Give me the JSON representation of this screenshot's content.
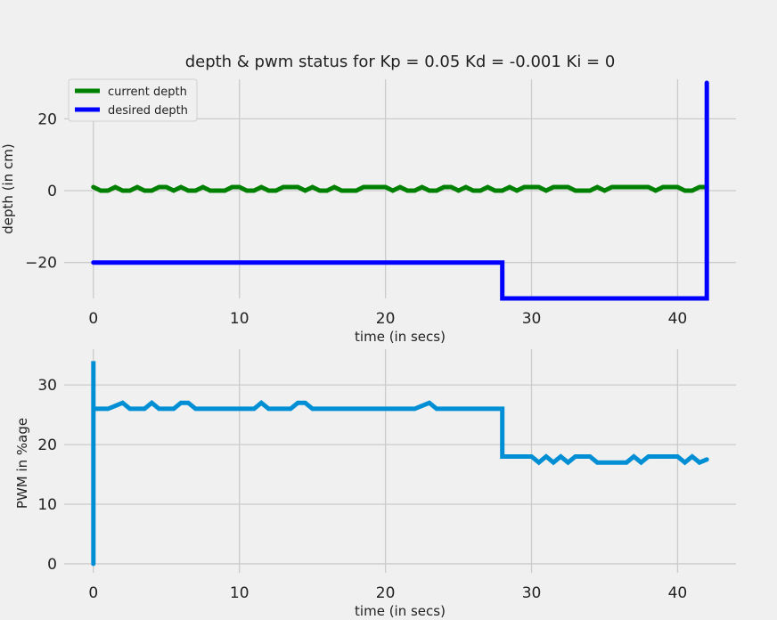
{
  "chart_data": [
    {
      "type": "line",
      "title": "depth & pwm status for Kp = 0.05 Kd = -0.001 Ki = 0",
      "xlabel": "time (in secs)",
      "ylabel": "depth (in cm)",
      "xlim": [
        -2,
        44
      ],
      "ylim": [
        -30,
        31
      ],
      "xticks": [
        0,
        10,
        20,
        30,
        40
      ],
      "yticks": [
        -20,
        0,
        20
      ],
      "ytick_labels": [
        "−20",
        "0",
        "20"
      ],
      "grid": true,
      "legend": "top-left",
      "series": [
        {
          "name": "current depth",
          "color": "#008000",
          "x": [
            0,
            0.5,
            1,
            1.5,
            2,
            2.5,
            3,
            3.5,
            4,
            4.5,
            5,
            5.5,
            6,
            6.5,
            7,
            7.5,
            8,
            8.5,
            9,
            9.5,
            10,
            10.5,
            11,
            11.5,
            12,
            12.5,
            13,
            13.5,
            14,
            14.5,
            15,
            15.5,
            16,
            16.5,
            17,
            17.5,
            18,
            18.5,
            19,
            19.5,
            20,
            20.5,
            21,
            21.5,
            22,
            22.5,
            23,
            23.5,
            24,
            24.5,
            25,
            25.5,
            26,
            26.5,
            27,
            27.5,
            28,
            28.5,
            29,
            29.5,
            30,
            30.5,
            31,
            31.5,
            32,
            32.5,
            33,
            33.5,
            34,
            34.5,
            35,
            35.5,
            36,
            36.5,
            37,
            37.5,
            38,
            38.5,
            39,
            39.5,
            40,
            40.5,
            41,
            41.5,
            42
          ],
          "values": [
            1,
            0,
            0,
            1,
            0,
            0,
            1,
            0,
            0,
            1,
            1,
            0,
            1,
            0,
            0,
            1,
            0,
            0,
            0,
            1,
            1,
            0,
            0,
            1,
            0,
            0,
            1,
            1,
            1,
            0,
            1,
            0,
            0,
            1,
            0,
            0,
            0,
            1,
            1,
            1,
            1,
            0,
            1,
            0,
            0,
            1,
            0,
            0,
            1,
            1,
            0,
            1,
            0,
            0,
            1,
            0,
            0,
            1,
            0,
            1,
            1,
            1,
            0,
            1,
            1,
            1,
            0,
            0,
            0,
            1,
            0,
            1,
            1,
            1,
            1,
            1,
            1,
            0,
            1,
            1,
            1,
            0,
            0,
            1,
            1
          ]
        },
        {
          "name": "desired depth",
          "color": "#0000ff",
          "x": [
            0,
            28,
            28,
            42,
            42
          ],
          "values": [
            -20,
            -20,
            -30,
            -30,
            30
          ]
        }
      ]
    },
    {
      "type": "line",
      "title": "",
      "xlabel": "time (in secs)",
      "ylabel": "PWM in %age",
      "xlim": [
        -2,
        44
      ],
      "ylim": [
        -1.5,
        36
      ],
      "xticks": [
        0,
        10,
        20,
        30,
        40
      ],
      "yticks": [
        0,
        10,
        20,
        30
      ],
      "grid": true,
      "series": [
        {
          "name": "",
          "color": "#008fd5",
          "x": [
            0,
            0,
            0,
            1,
            1.5,
            2,
            2.5,
            3,
            3.5,
            4,
            4.5,
            5,
            5.5,
            6,
            6.5,
            7,
            7.5,
            8,
            8.5,
            9,
            9.5,
            10,
            10.5,
            11,
            11.5,
            12,
            12.5,
            13,
            13.5,
            14,
            14.5,
            15,
            15.5,
            16,
            16.5,
            17,
            17.5,
            18,
            18.5,
            19,
            19.5,
            20,
            20.5,
            21,
            21.5,
            22,
            22.5,
            23,
            23.5,
            24,
            24.5,
            25,
            25.5,
            26,
            26.5,
            27,
            27.5,
            28,
            28,
            28.5,
            29,
            29.5,
            30,
            30.5,
            31,
            31.5,
            32,
            32.5,
            33,
            33.5,
            34,
            34.5,
            35,
            35.5,
            36,
            36.5,
            37,
            37.5,
            38,
            38.5,
            39,
            39.5,
            40,
            40.5,
            41,
            41.5,
            42
          ],
          "values": [
            0,
            34,
            26,
            26,
            26.5,
            27,
            26,
            26,
            26,
            27,
            26,
            26,
            26,
            27,
            27,
            26,
            26,
            26,
            26,
            26,
            26,
            26,
            26,
            26,
            27,
            26,
            26,
            26,
            26,
            27,
            27,
            26,
            26,
            26,
            26,
            26,
            26,
            26,
            26,
            26,
            26,
            26,
            26,
            26,
            26,
            26,
            26.5,
            27,
            26,
            26,
            26,
            26,
            26,
            26,
            26,
            26,
            26,
            26,
            18,
            18,
            18,
            18,
            18,
            17,
            18,
            17,
            18,
            17,
            18,
            18,
            18,
            17,
            17,
            17,
            17,
            17,
            18,
            17,
            18,
            18,
            18,
            18,
            18,
            17,
            18,
            17,
            17.5
          ]
        }
      ]
    }
  ]
}
